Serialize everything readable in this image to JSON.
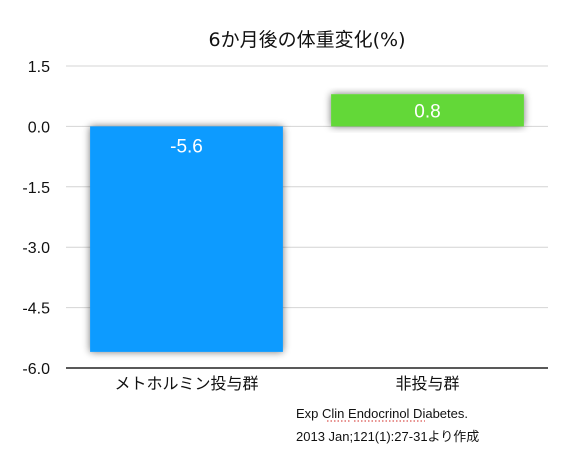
{
  "chart_data": {
    "type": "bar",
    "title": "6か月後の体重変化(%)",
    "categories": [
      "メトホルミン投与群",
      "非投与群"
    ],
    "values": [
      -5.6,
      0.8
    ],
    "data_labels": [
      "-5.6",
      "0.8"
    ],
    "bar_colors": [
      "#0a9bff",
      "#63d839"
    ],
    "ylim": [
      -6.0,
      1.5
    ],
    "yticks": [
      1.5,
      0.0,
      -1.5,
      -3.0,
      -4.5,
      -6.0
    ],
    "ytick_labels": [
      "1.5",
      "0.0",
      "-1.5",
      "-3.0",
      "-4.5",
      "-6.0"
    ],
    "grid": true,
    "legend": "none"
  },
  "source_note": {
    "line1": "Exp Clin Endocrinol Diabetes.",
    "line2": "2013 Jan;121(1):27-31より作成"
  }
}
